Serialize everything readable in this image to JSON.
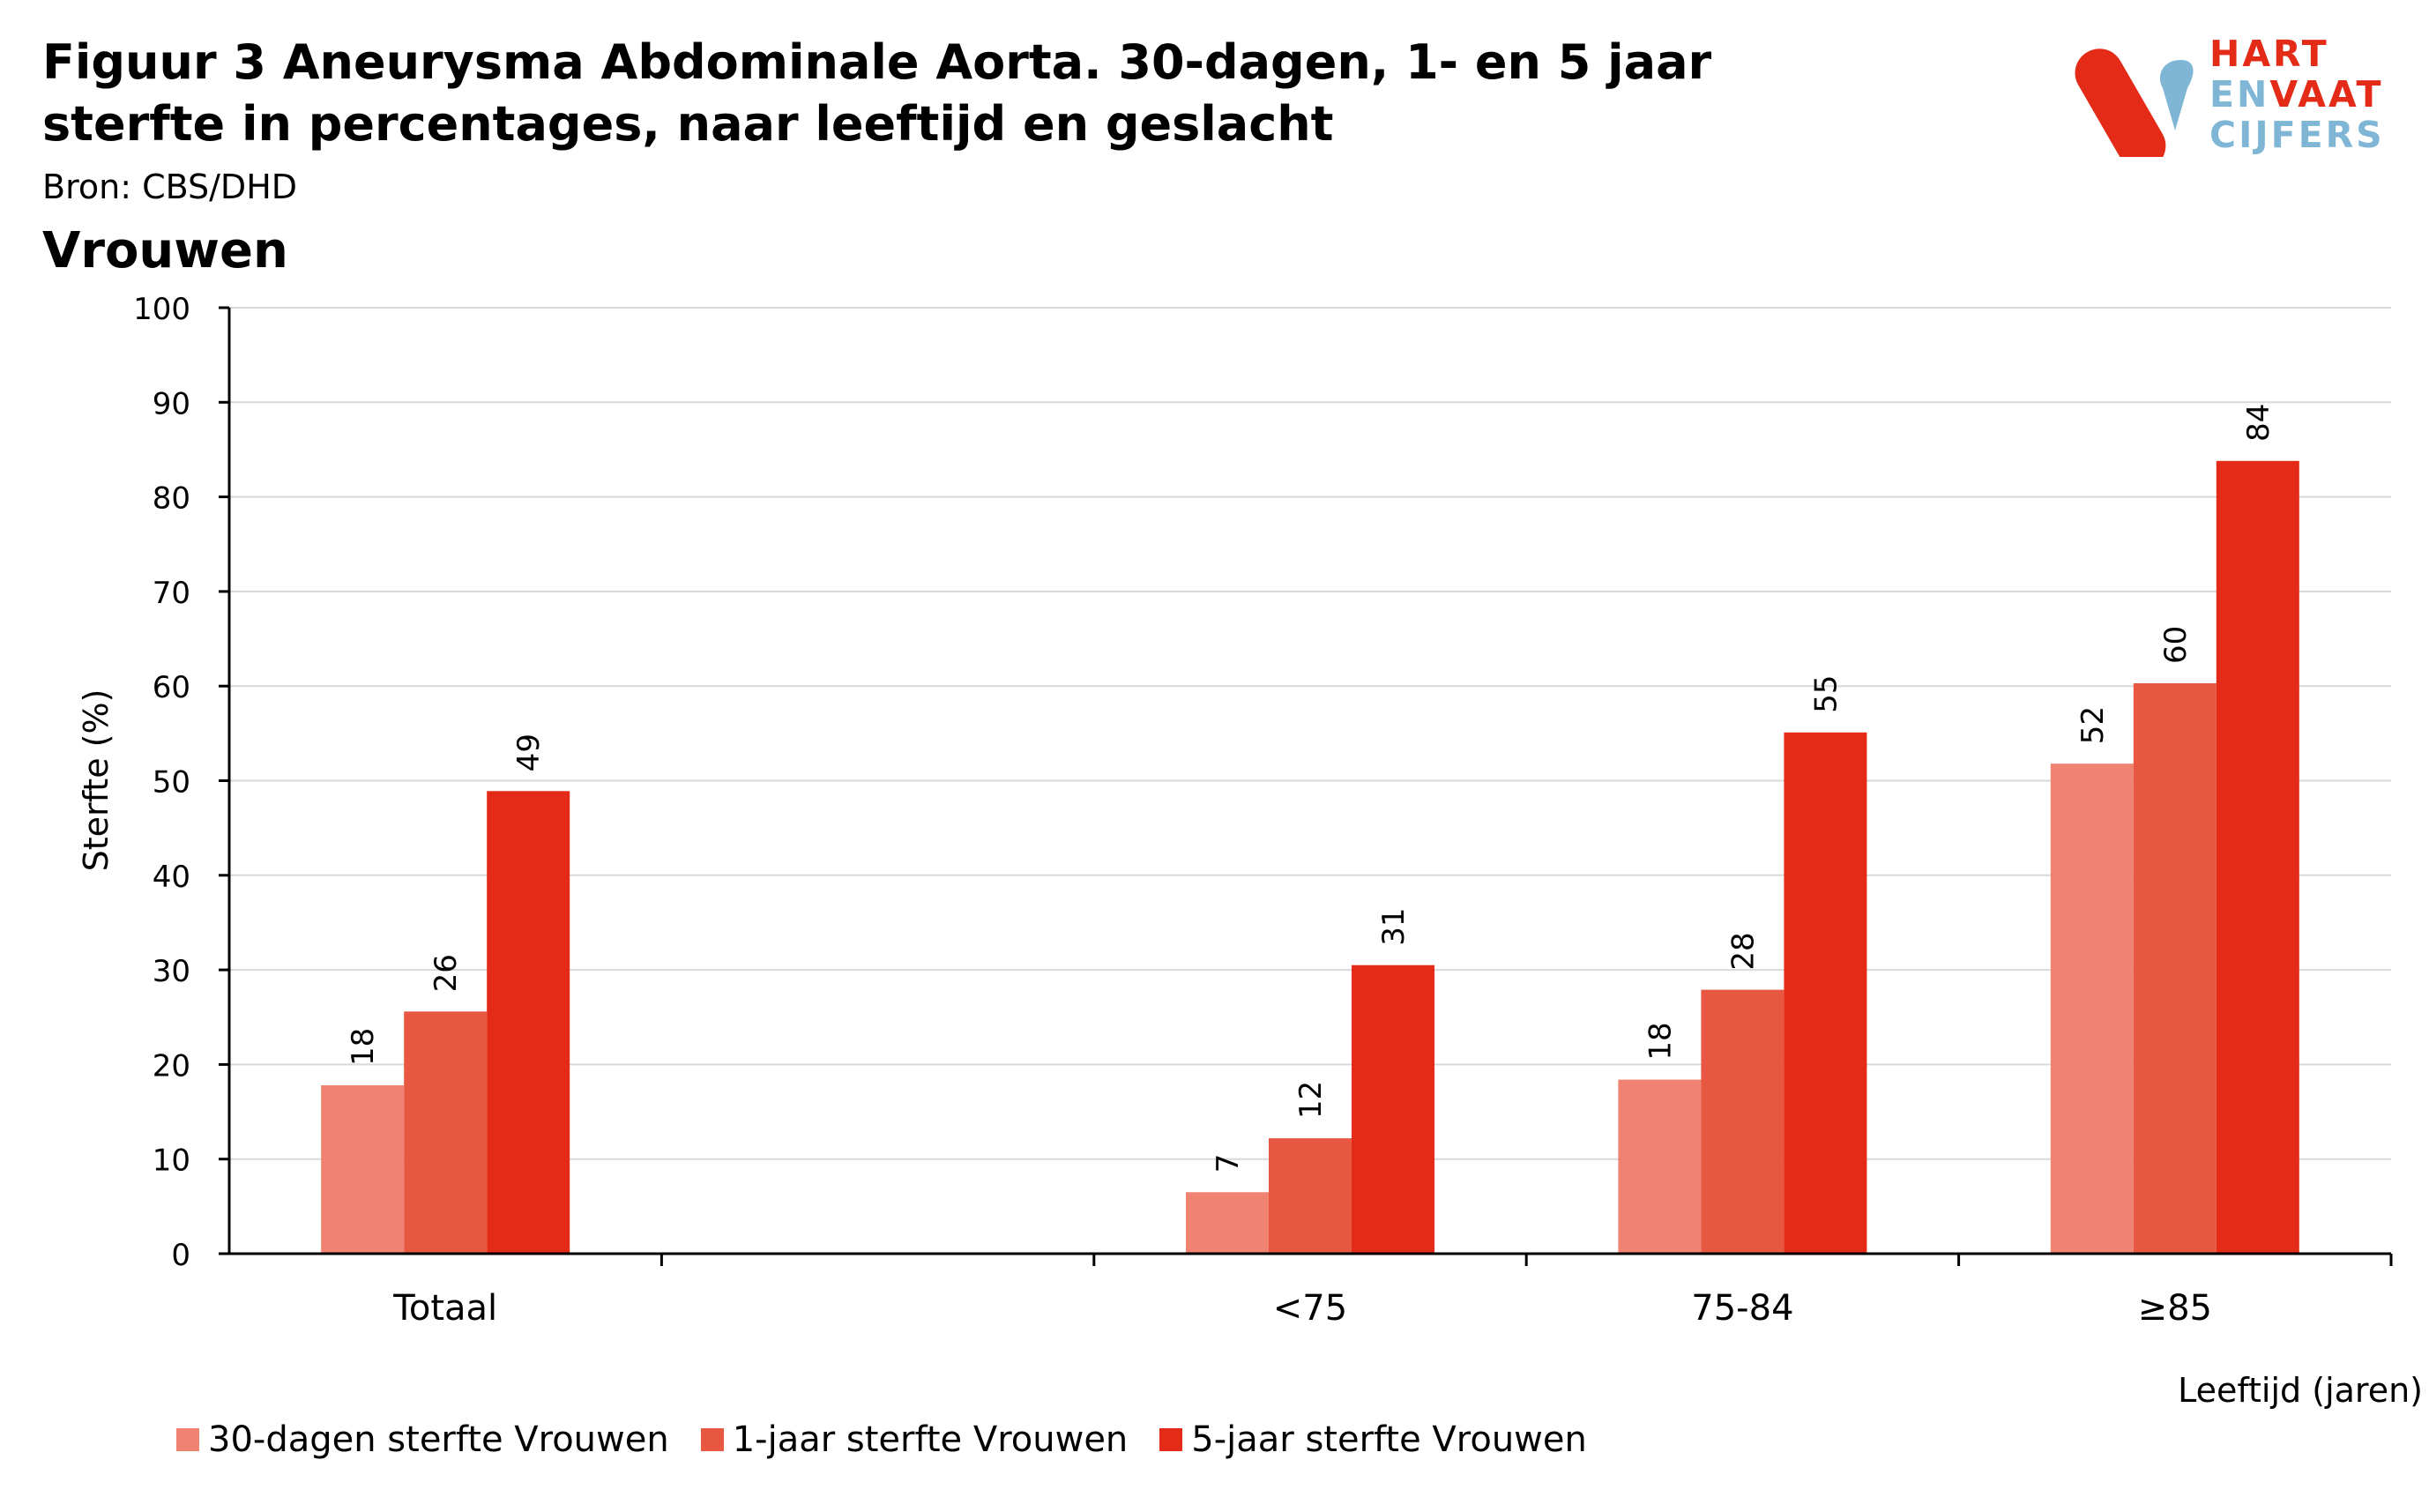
{
  "header": {
    "title": "Figuur 3 Aneurysma Abdominale Aorta. 30-dagen, 1- en 5 jaar sterfte in percentages, naar leeftijd en geslacht",
    "source": "Bron: CBS/DHD",
    "subtitle": "Vrouwen"
  },
  "logo": {
    "line1": "HART",
    "line2a": "EN",
    "line2b": "VAAT",
    "line3": "CIJFERS"
  },
  "colors": {
    "s1": "#ef8271",
    "s2": "#e75742",
    "s3": "#e32b17",
    "grid": "#d9d9d9",
    "axis": "#000000"
  },
  "chart_data": {
    "type": "bar",
    "categories": [
      "Totaal",
      "",
      "<75",
      "75-84",
      "≥85"
    ],
    "series": [
      {
        "name": "30-dagen sterfte Vrouwen",
        "values": [
          17.8,
          null,
          6.5,
          18.4,
          51.8
        ],
        "labels": [
          "18",
          "",
          "7",
          "18",
          "52"
        ]
      },
      {
        "name": "1-jaar sterfte Vrouwen",
        "values": [
          25.6,
          null,
          12.2,
          27.9,
          60.3
        ],
        "labels": [
          "26",
          "",
          "12",
          "28",
          "60"
        ]
      },
      {
        "name": "5-jaar sterfte Vrouwen",
        "values": [
          48.9,
          null,
          30.5,
          55.1,
          83.8
        ],
        "labels": [
          "49",
          "",
          "31",
          "55",
          "84"
        ]
      }
    ],
    "ylabel": "Sterfte (%)",
    "xlabel": "Leeftijd (jaren)",
    "ylim": [
      0,
      100
    ],
    "yticks": [
      0,
      10,
      20,
      30,
      40,
      50,
      60,
      70,
      80,
      90,
      100
    ],
    "grid": true,
    "legend": "bottom"
  }
}
